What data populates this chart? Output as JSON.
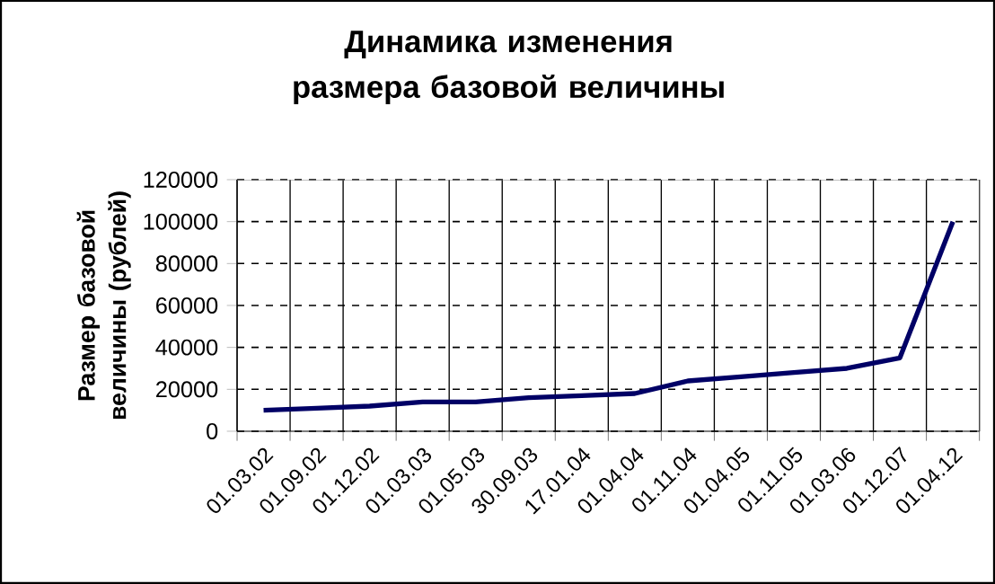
{
  "chart_data": {
    "type": "line",
    "title": "Динамика изменения размера базовой величины",
    "ylabel": "Размер базовой величины (рублей)",
    "categories": [
      "01.03.02",
      "01.09.02",
      "01.12.02",
      "01.03.03",
      "01.05.03",
      "30.09.03",
      "17.01.04",
      "01.04.04",
      "01.11.04",
      "01.04.05",
      "01.11.05",
      "01.03.06",
      "01.12.07",
      "01.04.12"
    ],
    "series": [
      {
        "color": "#000066",
        "values": [
          10000,
          11000,
          12000,
          14000,
          14000,
          16000,
          17000,
          18000,
          24000,
          26000,
          28000,
          30000,
          35000,
          100000
        ]
      }
    ],
    "ylim": [
      0,
      120000
    ],
    "yticks": [
      0,
      20000,
      40000,
      60000,
      80000,
      100000,
      120000
    ],
    "grid": true,
    "marker": "none",
    "line_style": "solid"
  }
}
